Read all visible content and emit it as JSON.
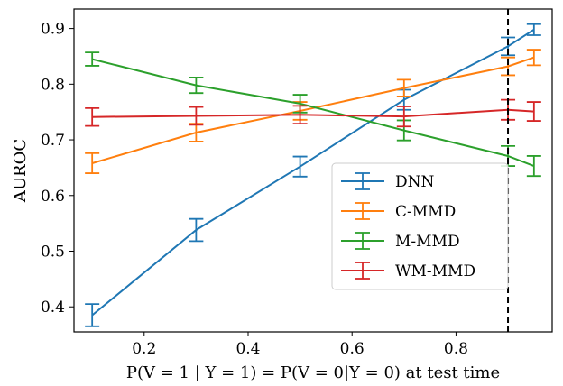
{
  "chart_data": {
    "type": "line",
    "xlabel": "P(V = 1 | Y = 1) = P(V = 0|Y = 0) at test time",
    "ylabel": "AUROC",
    "xlim": [
      0.065,
      0.985
    ],
    "ylim": [
      0.355,
      0.935
    ],
    "x_ticks": [
      0.2,
      0.4,
      0.6,
      0.8
    ],
    "x_tick_labels": [
      "0.2",
      "0.4",
      "0.6",
      "0.8"
    ],
    "y_ticks": [
      0.4,
      0.5,
      0.6,
      0.7,
      0.8,
      0.9
    ],
    "y_tick_labels": [
      "0.4",
      "0.5",
      "0.6",
      "0.7",
      "0.8",
      "0.9"
    ],
    "vline": 0.9,
    "legend_position": "lower right",
    "grid": false,
    "x": [
      0.1,
      0.3,
      0.5,
      0.7,
      0.9,
      0.95
    ],
    "series": [
      {
        "name": "DNN",
        "color": "#1f77b4",
        "values": [
          0.385,
          0.538,
          0.652,
          0.772,
          0.868,
          0.898
        ],
        "errors": [
          0.02,
          0.02,
          0.018,
          0.018,
          0.016,
          0.01
        ]
      },
      {
        "name": "C-MMD",
        "color": "#ff7f0e",
        "values": [
          0.658,
          0.713,
          0.752,
          0.793,
          0.832,
          0.848
        ],
        "errors": [
          0.018,
          0.016,
          0.016,
          0.015,
          0.016,
          0.014
        ]
      },
      {
        "name": "M-MMD",
        "color": "#2ca02c",
        "values": [
          0.845,
          0.798,
          0.765,
          0.717,
          0.671,
          0.653
        ],
        "errors": [
          0.012,
          0.014,
          0.016,
          0.018,
          0.018,
          0.018
        ]
      },
      {
        "name": "WM-MMD",
        "color": "#d62728",
        "values": [
          0.741,
          0.743,
          0.745,
          0.742,
          0.754,
          0.751
        ],
        "errors": [
          0.016,
          0.016,
          0.016,
          0.018,
          0.018,
          0.017
        ]
      }
    ]
  }
}
